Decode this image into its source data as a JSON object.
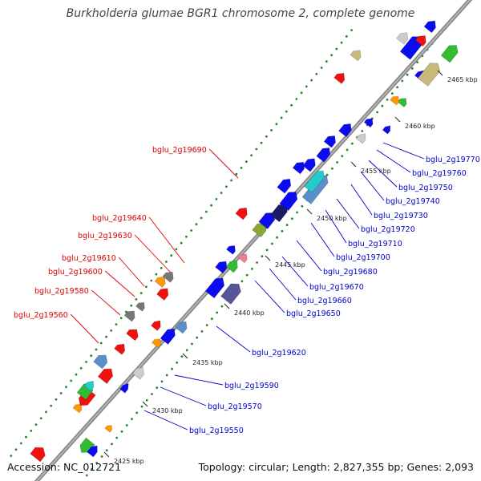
{
  "title": "Burkholderia glumae BGR1 chromosome 2, complete genome",
  "footer": {
    "accession": "Accession: NC_012721",
    "topology": "Topology: circular; Length: 2,827,355 bp; Genes: 2,093"
  },
  "colors": {
    "backbone": "#888888",
    "gene_blue": "#0b0bf0",
    "gene_red": "#f01010",
    "gene_green": "#33bb33",
    "gene_orange": "#ff9900",
    "gene_gray": "#777777",
    "gene_lightgray": "#cccccc",
    "gene_tan": "#c8b87a",
    "gene_steel": "#5b8fc8",
    "gene_cyan": "#22cccc",
    "gene_navy": "#1c1c66",
    "gene_slate": "#55559a",
    "gene_pink": "#f08090",
    "gene_olive": "#88aa33",
    "dots": "#228822",
    "label_red": "#dd0000",
    "label_blue": "#0000cc"
  },
  "scale_ticks": [
    "2425 kbp",
    "2430 kbp",
    "2435 kbp",
    "2440 kbp",
    "2445 kbp",
    "2450 kbp",
    "2455 kbp",
    "2460 kbp",
    "2465 kbp"
  ],
  "left_labels": [
    "bglu_2g19690",
    "bglu_2g19640",
    "bglu_2g19630",
    "bglu_2g19610",
    "bglu_2g19600",
    "bglu_2g19580",
    "bglu_2g19560"
  ],
  "right_labels": [
    "bglu_2g19770",
    "bglu_2g19760",
    "bglu_2g19750",
    "bglu_2g19740",
    "bglu_2g19730",
    "bglu_2g19720",
    "bglu_2g19710",
    "bglu_2g19700",
    "bglu_2g19680",
    "bglu_2g19670",
    "bglu_2g19660",
    "bglu_2g19650",
    "bglu_2g19620",
    "bglu_2g19590",
    "bglu_2g19570",
    "bglu_2g19550"
  ]
}
